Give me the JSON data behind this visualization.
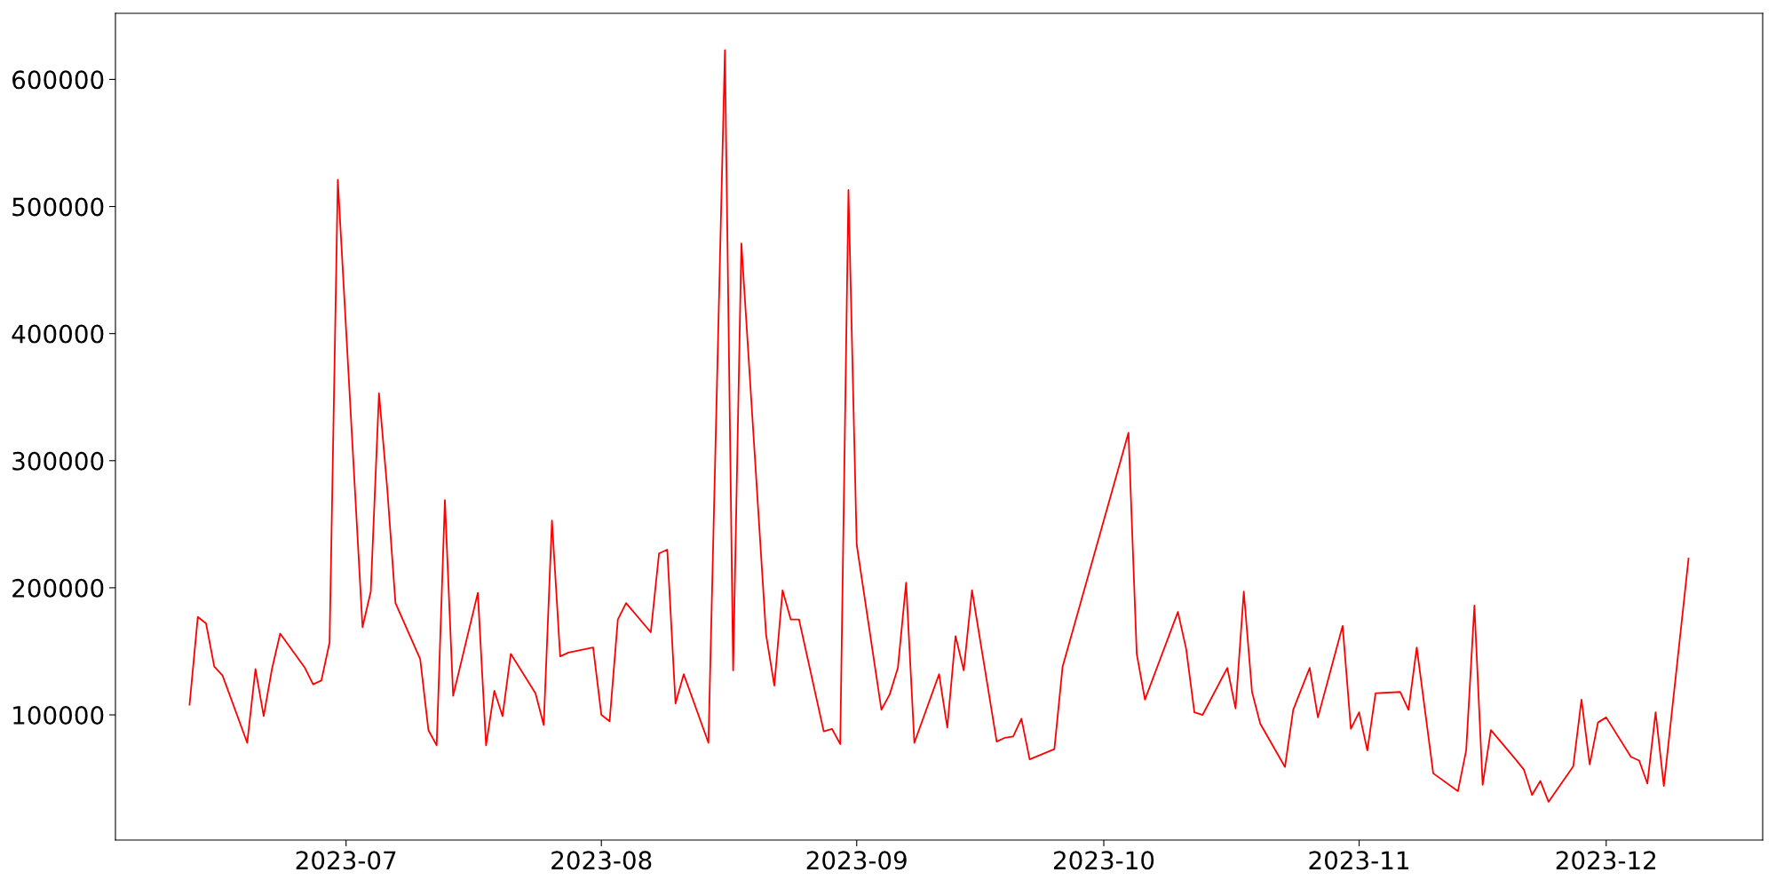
{
  "chart_data": {
    "type": "line",
    "x": [
      "2023-06-12",
      "2023-06-13",
      "2023-06-14",
      "2023-06-15",
      "2023-06-16",
      "2023-06-19",
      "2023-06-20",
      "2023-06-21",
      "2023-06-22",
      "2023-06-23",
      "2023-06-26",
      "2023-06-27",
      "2023-06-28",
      "2023-06-29",
      "2023-06-30",
      "2023-07-03",
      "2023-07-04",
      "2023-07-05",
      "2023-07-06",
      "2023-07-07",
      "2023-07-10",
      "2023-07-11",
      "2023-07-12",
      "2023-07-13",
      "2023-07-14",
      "2023-07-17",
      "2023-07-18",
      "2023-07-19",
      "2023-07-20",
      "2023-07-21",
      "2023-07-24",
      "2023-07-25",
      "2023-07-26",
      "2023-07-27",
      "2023-07-28",
      "2023-07-31",
      "2023-08-01",
      "2023-08-02",
      "2023-08-03",
      "2023-08-04",
      "2023-08-07",
      "2023-08-08",
      "2023-08-09",
      "2023-08-10",
      "2023-08-11",
      "2023-08-14",
      "2023-08-16",
      "2023-08-17",
      "2023-08-18",
      "2023-08-21",
      "2023-08-22",
      "2023-08-23",
      "2023-08-24",
      "2023-08-25",
      "2023-08-28",
      "2023-08-29",
      "2023-08-30",
      "2023-08-31",
      "2023-09-01",
      "2023-09-04",
      "2023-09-05",
      "2023-09-06",
      "2023-09-07",
      "2023-09-08",
      "2023-09-11",
      "2023-09-12",
      "2023-09-13",
      "2023-09-14",
      "2023-09-15",
      "2023-09-18",
      "2023-09-19",
      "2023-09-20",
      "2023-09-21",
      "2023-09-22",
      "2023-09-25",
      "2023-09-26",
      "2023-10-04",
      "2023-10-05",
      "2023-10-06",
      "2023-10-10",
      "2023-10-11",
      "2023-10-12",
      "2023-10-13",
      "2023-10-16",
      "2023-10-17",
      "2023-10-18",
      "2023-10-19",
      "2023-10-20",
      "2023-10-23",
      "2023-10-24",
      "2023-10-26",
      "2023-10-27",
      "2023-10-30",
      "2023-10-31",
      "2023-11-01",
      "2023-11-02",
      "2023-11-03",
      "2023-11-06",
      "2023-11-07",
      "2023-11-08",
      "2023-11-10",
      "2023-11-13",
      "2023-11-14",
      "2023-11-15",
      "2023-11-16",
      "2023-11-17",
      "2023-11-20",
      "2023-11-21",
      "2023-11-22",
      "2023-11-23",
      "2023-11-24",
      "2023-11-27",
      "2023-11-28",
      "2023-11-29",
      "2023-11-30",
      "2023-12-01",
      "2023-12-04",
      "2023-12-05",
      "2023-12-06",
      "2023-12-07",
      "2023-12-08",
      "2023-12-11"
    ],
    "series": [
      {
        "color": "#ff0000",
        "values": [
          108000,
          177000,
          172000,
          138000,
          131000,
          78000,
          136000,
          99000,
          136000,
          164000,
          137000,
          124000,
          127000,
          157000,
          521000,
          169000,
          197000,
          353000,
          278000,
          188000,
          144000,
          88000,
          76000,
          269000,
          115000,
          196000,
          76000,
          119000,
          99000,
          148000,
          117000,
          92000,
          253000,
          146000,
          149000,
          153000,
          100000,
          95000,
          175000,
          188000,
          165000,
          227000,
          230000,
          109000,
          132000,
          78000,
          623000,
          135000,
          471000,
          163000,
          123000,
          198000,
          175000,
          175000,
          87000,
          89000,
          77000,
          513000,
          234000,
          104000,
          116000,
          137000,
          204000,
          78000,
          132000,
          90000,
          162000,
          135000,
          198000,
          79000,
          82000,
          83000,
          97000,
          65000,
          73000,
          138000,
          322000,
          148000,
          112000,
          181000,
          152000,
          102000,
          100000,
          137000,
          105000,
          197000,
          118000,
          93000,
          59000,
          104000,
          137000,
          98000,
          170000,
          89000,
          102000,
          72000,
          117000,
          118000,
          104000,
          153000,
          54000,
          40000,
          72000,
          186000,
          45000,
          88000,
          65000,
          57000,
          37000,
          48000,
          31600,
          59500,
          112000,
          61000,
          94000,
          98000,
          67000,
          64000,
          46000,
          102000,
          44000,
          223000
        ]
      }
    ],
    "xlim": [
      "2023-06-03",
      "2023-12-20"
    ],
    "xticks": [
      {
        "value": "2023-07-01",
        "label": "2023-07"
      },
      {
        "value": "2023-08-01",
        "label": "2023-08"
      },
      {
        "value": "2023-09-01",
        "label": "2023-09"
      },
      {
        "value": "2023-10-01",
        "label": "2023-10"
      },
      {
        "value": "2023-11-01",
        "label": "2023-11"
      },
      {
        "value": "2023-12-01",
        "label": "2023-12"
      }
    ],
    "ylim": [
      1500,
      652000
    ],
    "yticks": [
      100000,
      200000,
      300000,
      400000,
      500000,
      600000
    ],
    "grid": false,
    "marker": "none",
    "line_style": "solid"
  }
}
